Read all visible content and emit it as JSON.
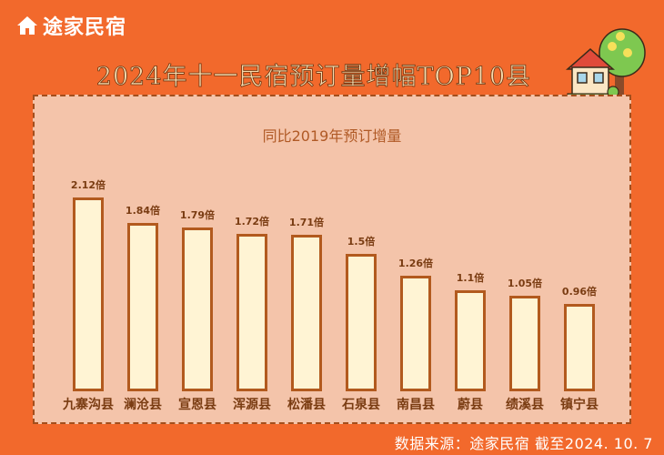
{
  "brand": {
    "name": "途家民宿",
    "icon": "house-logo-icon"
  },
  "title": "2024年十一民宿预订量增幅TOP10县",
  "footer": "数据来源：途家民宿  截至2024. 10. 7",
  "colors": {
    "background": "#f2692c",
    "panel": "#f4c4aa",
    "bar_fill": "#fff4d4",
    "bar_border": "#b25a1e",
    "title_fill": "#f9dcae",
    "label": "#7a3c12"
  },
  "chart_data": {
    "type": "bar",
    "title": "2024年十一民宿预订量增幅TOP10县",
    "subtitle": "同比2019年预订增量",
    "xlabel": "",
    "ylabel": "",
    "unit": "倍",
    "categories": [
      "九寨沟县",
      "澜沧县",
      "宣恩县",
      "浑源县",
      "松潘县",
      "石泉县",
      "南昌县",
      "蔚县",
      "绩溪县",
      "镇宁县"
    ],
    "values": [
      2.12,
      1.84,
      1.79,
      1.72,
      1.71,
      1.5,
      1.26,
      1.1,
      1.05,
      0.96
    ],
    "value_labels": [
      "2.12倍",
      "1.84倍",
      "1.79倍",
      "1.72倍",
      "1.71倍",
      "1.5倍",
      "1.26倍",
      "1.1倍",
      "1.05倍",
      "0.96倍"
    ],
    "grid": false,
    "legend": null,
    "ylim": [
      0,
      2.2
    ]
  }
}
